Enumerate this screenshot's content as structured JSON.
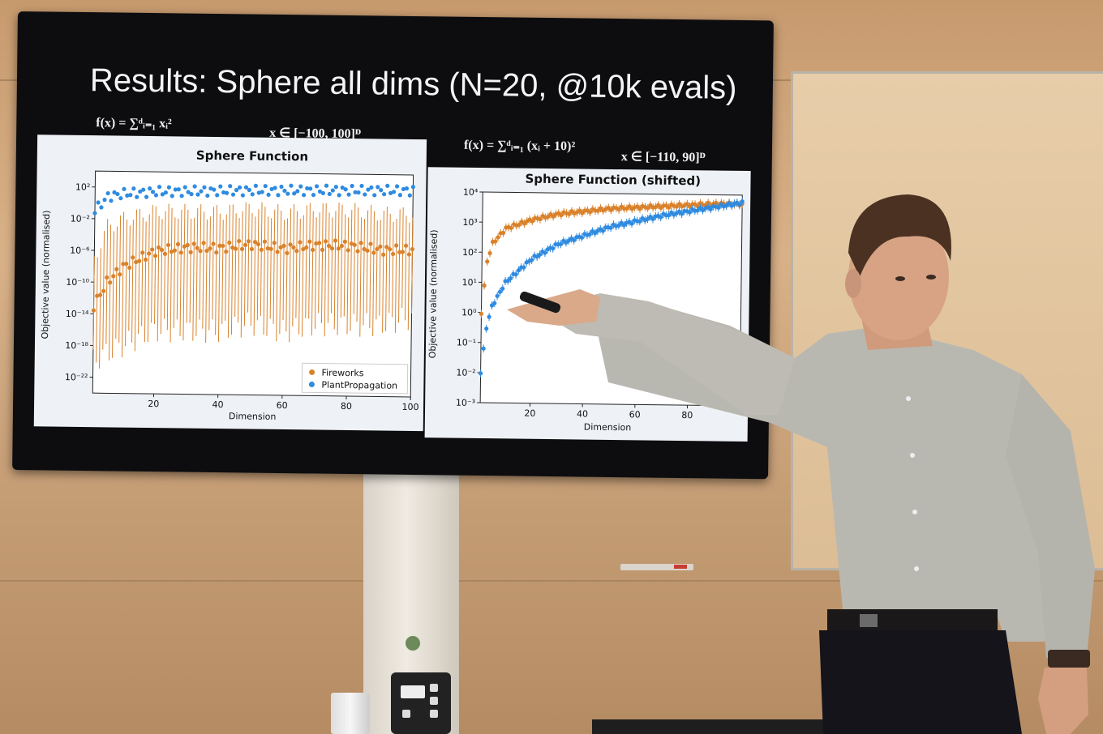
{
  "slide": {
    "title": "Results: Sphere all dims (N=20, @10k evals)",
    "formula_left": "f(x) = ∑ᵈᵢ₌₁ xᵢ²",
    "domain_left": "x ∈ [−100, 100]ᴰ",
    "formula_right": "f(x) = ∑ᵈᵢ₌₁ (xᵢ + 10)²",
    "domain_right": "x ∈ [−110, 90]ᴰ"
  },
  "colors": {
    "fireworks": "#d9822b",
    "plantpropagation": "#2f8be0",
    "panel_bg": "#eef2f7"
  },
  "chart_data": [
    {
      "type": "scatter",
      "title": "Sphere Function",
      "xlabel": "Dimension",
      "ylabel": "Objective value (normalised)",
      "yscale": "log",
      "xlim": [
        1,
        100
      ],
      "ylim_log10": [
        -24,
        4
      ],
      "x_ticks": [
        "20",
        "40",
        "60",
        "80",
        "100"
      ],
      "y_ticks": [
        "10²",
        "10⁻²",
        "10⁻⁶",
        "10⁻¹⁰",
        "10⁻¹⁴",
        "10⁻¹⁸",
        "10⁻²²"
      ],
      "legend": [
        "Fireworks",
        "PlantPropagation"
      ],
      "legend_position": "lower-right",
      "series": [
        {
          "name": "Fireworks",
          "x": [
            1,
            5,
            10,
            20,
            30,
            40,
            50,
            60,
            70,
            80,
            90,
            100
          ],
          "log10_y": [
            -13,
            -10,
            -8,
            -6,
            -5.5,
            -5.5,
            -5,
            -5.5,
            -5,
            -5,
            -5.5,
            -5.5
          ],
          "log10_err_low": [
            -20,
            -19,
            -18,
            -16,
            -16,
            -16,
            -15,
            -16,
            -15,
            -15,
            -15,
            -14
          ],
          "log10_err_high": [
            -7,
            -3,
            -2,
            -1,
            -1,
            -1,
            -0.5,
            -1,
            -0.5,
            -0.5,
            -1,
            -1
          ]
        },
        {
          "name": "PlantPropagation",
          "x": [
            1,
            5,
            10,
            20,
            30,
            40,
            50,
            60,
            70,
            80,
            90,
            100
          ],
          "log10_y": [
            -1,
            0.8,
            1.2,
            1.5,
            1.6,
            1.7,
            1.8,
            1.85,
            1.9,
            1.95,
            2.0,
            2.0
          ]
        }
      ]
    },
    {
      "type": "scatter",
      "title": "Sphere Function (shifted)",
      "xlabel": "Dimension",
      "ylabel": "Objective value (normalised)",
      "yscale": "log",
      "xlim": [
        1,
        100
      ],
      "ylim_log10": [
        -3,
        4
      ],
      "x_ticks": [
        "20",
        "40",
        "60",
        "80"
      ],
      "y_ticks": [
        "10⁴",
        "10³",
        "10²",
        "10¹",
        "10⁰",
        "10⁻¹",
        "10⁻²",
        "10⁻³"
      ],
      "legend_position": "lower-right",
      "series": [
        {
          "name": "Fireworks",
          "x": [
            1,
            3,
            5,
            10,
            20,
            30,
            40,
            50,
            60,
            70,
            80,
            90,
            100
          ],
          "log10_y": [
            0,
            1.7,
            2.3,
            2.8,
            3.1,
            3.3,
            3.4,
            3.5,
            3.55,
            3.6,
            3.65,
            3.7,
            3.7
          ]
        },
        {
          "name": "PlantPropagation",
          "x": [
            1,
            3,
            5,
            10,
            20,
            30,
            40,
            50,
            60,
            70,
            80,
            90,
            100
          ],
          "log10_y": [
            -2,
            -0.5,
            0.2,
            1.0,
            1.8,
            2.3,
            2.6,
            2.9,
            3.1,
            3.3,
            3.45,
            3.6,
            3.75
          ]
        }
      ]
    }
  ]
}
